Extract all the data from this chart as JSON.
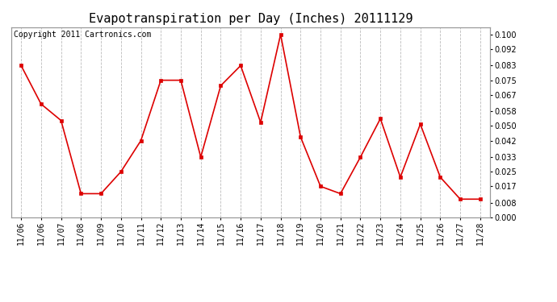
{
  "title": "Evapotranspiration per Day (Inches) 20111129",
  "copyright_text": "Copyright 2011 Cartronics.com",
  "x_labels": [
    "11/06",
    "11/06",
    "11/07",
    "11/08",
    "11/09",
    "11/10",
    "11/11",
    "11/12",
    "11/13",
    "11/14",
    "11/15",
    "11/16",
    "11/17",
    "11/18",
    "11/19",
    "11/20",
    "11/21",
    "11/22",
    "11/23",
    "11/24",
    "11/25",
    "11/26",
    "11/27",
    "11/28"
  ],
  "y_values": [
    0.083,
    0.062,
    0.053,
    0.013,
    0.013,
    0.025,
    0.042,
    0.075,
    0.075,
    0.033,
    0.072,
    0.083,
    0.052,
    0.1,
    0.044,
    0.017,
    0.013,
    0.033,
    0.054,
    0.022,
    0.051,
    0.022,
    0.01,
    0.01
  ],
  "line_color": "#dd0000",
  "marker": "s",
  "marker_size": 3,
  "ylim": [
    0.0,
    0.104
  ],
  "yticks": [
    0.0,
    0.008,
    0.017,
    0.025,
    0.033,
    0.042,
    0.05,
    0.058,
    0.067,
    0.075,
    0.083,
    0.092,
    0.1
  ],
  "background_color": "#ffffff",
  "grid_color": "#bbbbbb",
  "title_fontsize": 11,
  "copyright_fontsize": 7,
  "tick_fontsize": 7,
  "ytick_fontsize": 7
}
